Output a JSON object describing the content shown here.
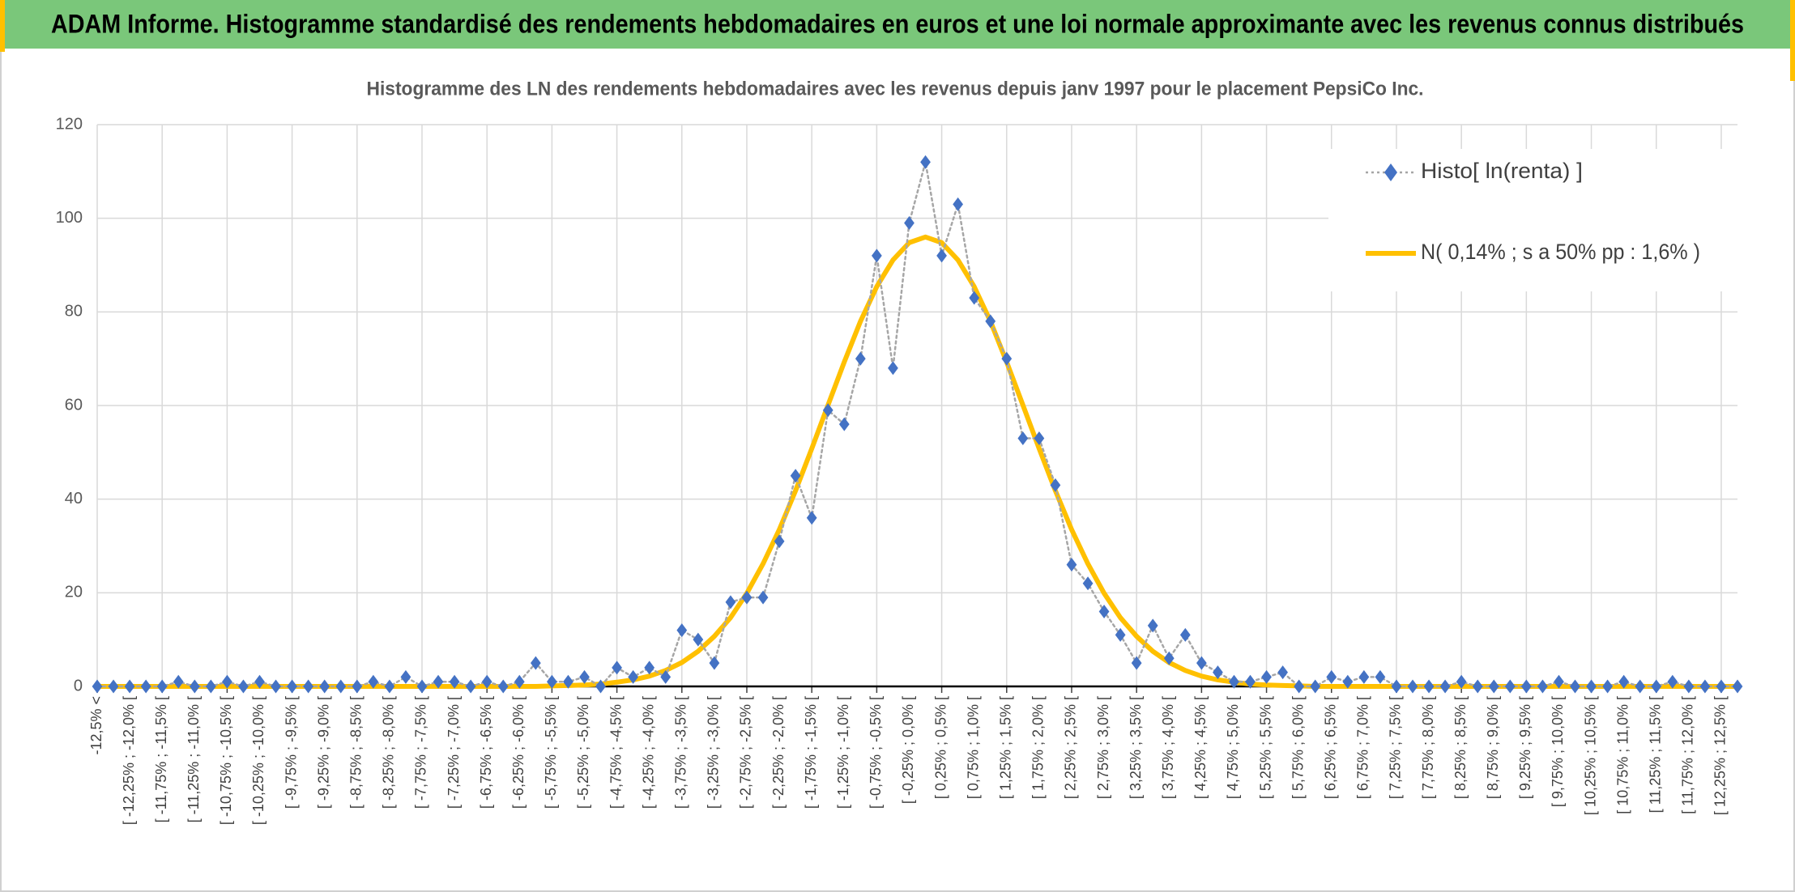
{
  "chart_data": {
    "type": "line",
    "header": "ADAM Informe. Histogramme standardisé des rendements hebdomadaires en euros et une loi normale approximante avec les revenus connus distribués",
    "title": "Histogramme des LN des rendements hebdomadaires avec les revenus depuis janv 1997 pour le placement PepsiCo Inc.",
    "categories": [
      "-12,5% <",
      null,
      "[ -12,25% ; -12,0% [",
      null,
      "[ -11,75% ; -11,5% [",
      null,
      "[ -11,25% ; -11,0% [",
      null,
      "[ -10,75% ; -10,5% [",
      null,
      "[ -10,25% ; -10,0% [",
      null,
      "[ -9,75% ; -9,5% [",
      null,
      "[ -9,25% ; -9,0% [",
      null,
      "[ -8,75% ; -8,5% [",
      null,
      "[ -8,25% ; -8,0% [",
      null,
      "[ -7,75% ; -7,5% [",
      null,
      "[ -7,25% ; -7,0% [",
      null,
      "[ -6,75% ; -6,5% [",
      null,
      "[ -6,25% ; -6,0% [",
      null,
      "[ -5,75% ; -5,5% [",
      null,
      "[ -5,25% ; -5,0% [",
      null,
      "[ -4,75% ; -4,5% [",
      null,
      "[ -4,25% ; -4,0% [",
      null,
      "[ -3,75% ; -3,5% [",
      null,
      "[ -3,25% ; -3,0% [",
      null,
      "[ -2,75% ; -2,5% [",
      null,
      "[ -2,25% ; -2,0% [",
      null,
      "[ -1,75% ; -1,5% [",
      null,
      "[ -1,25% ; -1,0% [",
      null,
      "[ -0,75% ; -0,5% [",
      null,
      "[ -0,25% ; 0,0% [",
      null,
      "[ 0,25% ; 0,5% [",
      null,
      "[ 0,75% ; 1,0% [",
      null,
      "[ 1,25% ; 1,5% [",
      null,
      "[ 1,75% ; 2,0% [",
      null,
      "[ 2,25% ; 2,5% [",
      null,
      "[ 2,75% ; 3,0% [",
      null,
      "[ 3,25% ; 3,5% [",
      null,
      "[ 3,75% ; 4,0% [",
      null,
      "[ 4,25% ; 4,5% [",
      null,
      "[ 4,75% ; 5,0% [",
      null,
      "[ 5,25% ; 5,5% [",
      null,
      "[ 5,75% ; 6,0% [",
      null,
      "[ 6,25% ; 6,5% [",
      null,
      "[ 6,75% ; 7,0% [",
      null,
      "[ 7,25% ; 7,5% [",
      null,
      "[ 7,75% ; 8,0% [",
      null,
      "[ 8,25% ; 8,5% [",
      null,
      "[ 8,75% ; 9,0% [",
      null,
      "[ 9,25% ; 9,5% [",
      null,
      "[ 9,75% ; 10,0% [",
      null,
      "[ 10,25% ; 10,5% [",
      null,
      "[ 10,75% ; 11,0% [",
      null,
      "[ 11,25% ; 11,5% [",
      null,
      "[ 11,75% ; 12,0% [",
      null,
      "[ 12,25% ; 12,5% [",
      null
    ],
    "series": [
      {
        "name": "Histo[ ln(renta) ]",
        "color": "#4472c4",
        "line_color": "#a6a6a6",
        "line_style": "dotted",
        "marker": "diamond",
        "values": [
          0,
          0,
          0,
          0,
          0,
          1,
          0,
          0,
          1,
          0,
          1,
          0,
          0,
          0,
          0,
          0,
          0,
          1,
          0,
          2,
          0,
          1,
          1,
          0,
          1,
          0,
          1,
          5,
          1,
          1,
          2,
          0,
          4,
          2,
          4,
          2,
          12,
          10,
          5,
          18,
          19,
          19,
          31,
          45,
          36,
          59,
          56,
          70,
          92,
          68,
          99,
          112,
          92,
          103,
          83,
          78,
          70,
          53,
          53,
          43,
          26,
          22,
          16,
          11,
          5,
          13,
          6,
          11,
          5,
          3,
          1,
          1,
          2,
          3,
          0,
          0,
          2,
          1,
          2,
          2,
          0,
          0,
          0,
          0,
          1,
          0,
          0,
          0,
          0,
          0,
          1,
          0,
          0,
          0,
          1,
          0,
          0,
          1,
          0,
          0,
          0,
          0
        ]
      },
      {
        "name": "N( 0,14% ; s a 50% pp : 1,6% )",
        "color": "#ffc000",
        "line_color": "#ffc000",
        "line_style": "solid",
        "marker": "none",
        "values": [
          0,
          0,
          0,
          0,
          0,
          0,
          0,
          0,
          0,
          0,
          0,
          0,
          0,
          0,
          0,
          0,
          0,
          0,
          0,
          0,
          0,
          0,
          0,
          0,
          0,
          0,
          0,
          0,
          0.1,
          0.2,
          0.3,
          0.5,
          0.9,
          1.4,
          2.2,
          3.4,
          5.1,
          7.5,
          10.7,
          14.7,
          19.9,
          26.2,
          33.5,
          41.8,
          50.8,
          60.1,
          69.3,
          78.0,
          85.4,
          91.1,
          94.8,
          96,
          94.8,
          91.1,
          85.4,
          78.0,
          69.3,
          60.1,
          50.8,
          41.8,
          33.5,
          26.2,
          19.9,
          14.7,
          10.7,
          7.5,
          5.1,
          3.4,
          2.2,
          1.4,
          0.9,
          0.5,
          0.3,
          0.2,
          0.1,
          0,
          0,
          0,
          0,
          0,
          0,
          0,
          0,
          0,
          0,
          0,
          0,
          0,
          0,
          0,
          0,
          0,
          0,
          0,
          0,
          0,
          0,
          0,
          0,
          0,
          0,
          0
        ]
      }
    ],
    "ylim": [
      0,
      120
    ],
    "yticks": [
      0,
      20,
      40,
      60,
      80,
      100,
      120
    ],
    "grid": true,
    "legend": "upper right"
  }
}
